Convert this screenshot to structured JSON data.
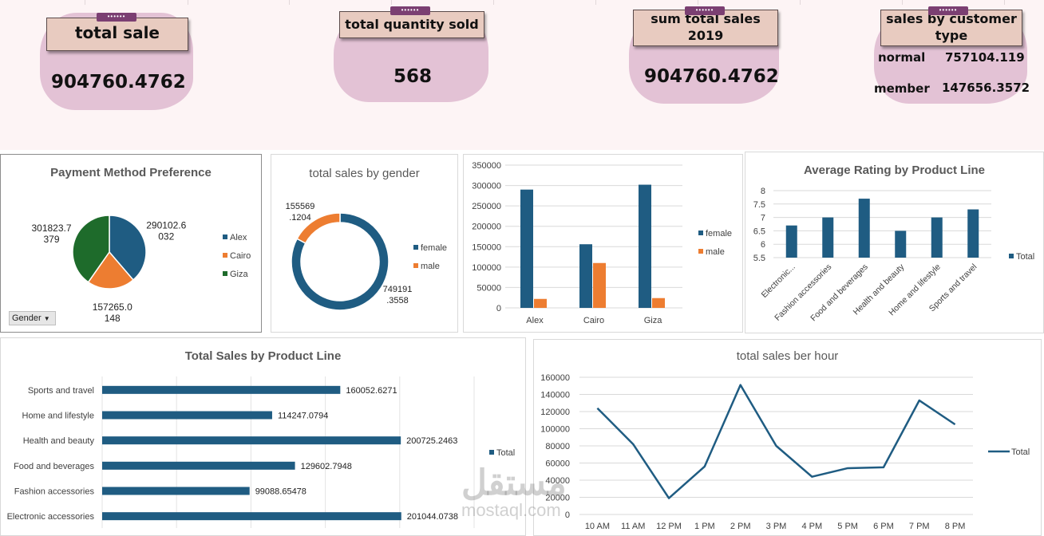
{
  "kpis": {
    "total_sale": {
      "label": "total sale",
      "value": "904760.4762"
    },
    "total_quantity": {
      "label": "total quantity sold",
      "value": "568"
    },
    "sum_2019": {
      "label_line1": "sum total sales",
      "label_line2": "2019",
      "value": "904760.4762"
    },
    "customer_type": {
      "label_line1": "sales by customer",
      "label_line2": "type",
      "rows": [
        {
          "name": "normal",
          "value": "757104.119"
        },
        {
          "name": "member",
          "value": "147656.3572"
        }
      ]
    }
  },
  "colors": {
    "blue": "#1f5c82",
    "orange": "#ed7d31",
    "green": "#1e6b2b",
    "kpi_blob": "#e3c2d5",
    "kpi_label": "#e8cbc0"
  },
  "slicer": {
    "label": "Gender"
  },
  "watermark": {
    "line1": "مستقل",
    "line2": "mostaql.com"
  },
  "chart_data": [
    {
      "id": "payment",
      "type": "pie",
      "title": "Payment Method Preference",
      "categories": [
        "Alex",
        "Cairo",
        "Giza"
      ],
      "values": [
        290102.6032,
        157265.0148,
        301823.7379
      ],
      "labels": [
        [
          "290102.6",
          "032"
        ],
        [
          "157265.0",
          "148"
        ],
        [
          "301823.7",
          "379"
        ]
      ],
      "legend_position": "right"
    },
    {
      "id": "gender",
      "type": "pie",
      "subtype": "donut",
      "title": "total sales by gender",
      "categories": [
        "female",
        "male"
      ],
      "values": [
        749191.3558,
        155569.1204
      ],
      "labels": [
        [
          "749191",
          ".3558"
        ],
        [
          "155569",
          ".1204"
        ]
      ],
      "legend_position": "right"
    },
    {
      "id": "city_gender",
      "type": "bar",
      "title": "",
      "categories": [
        "Alex",
        "Cairo",
        "Giza"
      ],
      "series": [
        {
          "name": "female",
          "values": [
            290000,
            156000,
            302000
          ]
        },
        {
          "name": "male",
          "values": [
            22000,
            110000,
            24000
          ]
        }
      ],
      "ylim": [
        0,
        350000
      ],
      "yticks": [
        "0",
        "50000",
        "100000",
        "150000",
        "200000",
        "250000",
        "300000",
        "350000"
      ],
      "legend_position": "right"
    },
    {
      "id": "rating",
      "type": "bar",
      "title": "Average Rating by Product Line",
      "categories": [
        "Electronic...",
        "Fashion accessories",
        "Food and beverages",
        "Health and beauty",
        "Home and lifestyle",
        "Sports and travel"
      ],
      "series": [
        {
          "name": "Total",
          "values": [
            6.7,
            7.0,
            7.7,
            6.5,
            7.0,
            7.3
          ]
        }
      ],
      "ylim": [
        5.5,
        8
      ],
      "yticks": [
        "5.5",
        "6",
        "6.5",
        "7",
        "7.5",
        "8"
      ],
      "legend_position": "right"
    },
    {
      "id": "product_sales",
      "type": "bar",
      "orientation": "horizontal",
      "title": "Total Sales by Product Line",
      "categories": [
        "Sports and travel",
        "Home and lifestyle",
        "Health and beauty",
        "Food and beverages",
        "Fashion accessories",
        "Electronic accessories"
      ],
      "series": [
        {
          "name": "Total",
          "values": [
            160052.6271,
            114247.0794,
            200725.2463,
            129602.7948,
            99088.65478,
            201044.0738
          ]
        }
      ],
      "labels": [
        "160052.6271",
        "114247.0794",
        "200725.2463",
        "129602.7948",
        "99088.65478",
        "201044.0738"
      ],
      "legend_position": "right"
    },
    {
      "id": "hourly",
      "type": "line",
      "title": "total sales ber hour",
      "x": [
        "10 AM",
        "11 AM",
        "12 PM",
        "1 PM",
        "2 PM",
        "3 PM",
        "4 PM",
        "5 PM",
        "6 PM",
        "7 PM",
        "8 PM"
      ],
      "series": [
        {
          "name": "Total",
          "values": [
            124000,
            82000,
            19000,
            56000,
            151000,
            80000,
            44000,
            54000,
            55000,
            133000,
            105000
          ]
        }
      ],
      "ylim": [
        0,
        160000
      ],
      "yticks": [
        "0",
        "20000",
        "40000",
        "60000",
        "80000",
        "100000",
        "120000",
        "140000",
        "160000"
      ],
      "legend_position": "right"
    }
  ]
}
